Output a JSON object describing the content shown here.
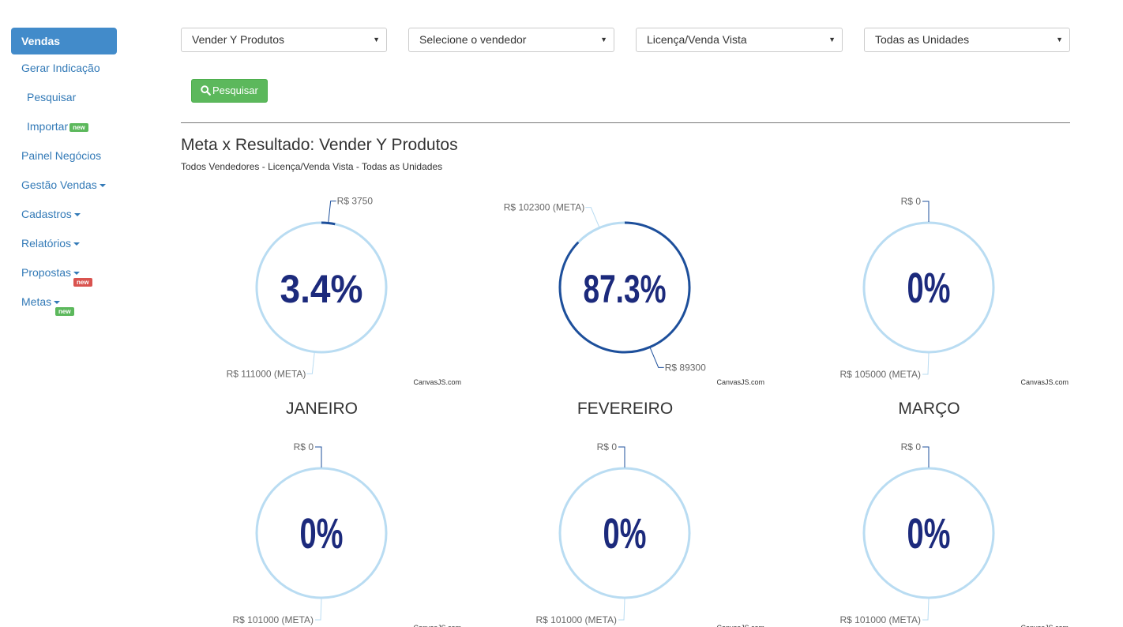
{
  "sidebar": {
    "active": "Vendas",
    "items": [
      {
        "label": "Gerar Indicação",
        "sub": false
      },
      {
        "label": "Pesquisar",
        "sub": true
      },
      {
        "label": "Importar",
        "sub": true,
        "badge": "new"
      },
      {
        "label": "Painel Negócios",
        "sub": false
      },
      {
        "label": "Gestão Vendas",
        "sub": false
      },
      {
        "label": "Cadastros",
        "sub": false
      },
      {
        "label": "Relatórios",
        "sub": false
      },
      {
        "label": "Propostas",
        "sub": false,
        "badge": "new"
      },
      {
        "label": "Metas",
        "sub": false,
        "badge": "new"
      }
    ]
  },
  "filters": {
    "product": "Vender Y Produtos",
    "seller": "Selecione o vendedor",
    "type": "Licença/Venda Vista",
    "unit": "Todas as Unidades"
  },
  "search_button": "Pesquisar",
  "title": "Meta x Resultado: Vender Y Produtos",
  "subtitle": "Todos Vendedores - Licença/Venda Vista - Todas as Unidades",
  "credit": "CanvasJS.com",
  "colors": {
    "ring": "#b9dcf2",
    "progress": "#1d4f9b",
    "percent": "#1c2a7c"
  },
  "chart_data": [
    {
      "type": "pie",
      "month": "JANEIRO",
      "percent_label": "3.4%",
      "progress": 0.0338,
      "result_label": "R$ 3750",
      "meta_label": "R$ 111000 (META)"
    },
    {
      "type": "pie",
      "month": "FEVEREIRO",
      "percent_label": "87.3%",
      "progress": 0.873,
      "result_label": "R$ 89300",
      "meta_label": "R$ 102300 (META)"
    },
    {
      "type": "pie",
      "month": "MARÇO",
      "percent_label": "0%",
      "progress": 0,
      "result_label": "R$ 0",
      "meta_label": "R$ 105000 (META)"
    },
    {
      "type": "pie",
      "month": "",
      "percent_label": "0%",
      "progress": 0,
      "result_label": "R$ 0",
      "meta_label": "R$ 101000 (META)"
    },
    {
      "type": "pie",
      "month": "",
      "percent_label": "0%",
      "progress": 0,
      "result_label": "R$ 0",
      "meta_label": "R$ 101000 (META)"
    },
    {
      "type": "pie",
      "month": "",
      "percent_label": "0%",
      "progress": 0,
      "result_label": "R$ 0",
      "meta_label": "R$ 101000 (META)"
    }
  ]
}
